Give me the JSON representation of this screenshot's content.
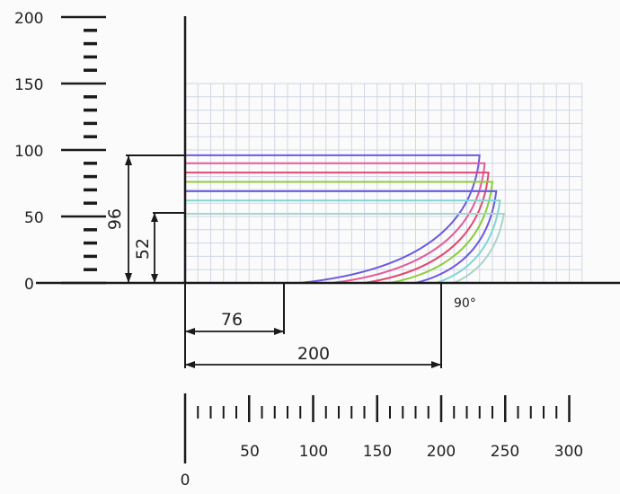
{
  "colors": {
    "background": "#fbfbfb",
    "grid": "#cfd6e6",
    "axis": "#1a1a1a",
    "curves": [
      "#6a5ae0",
      "#e05d9a",
      "#e04a72",
      "#8ccc3c",
      "#6a5ae0",
      "#7fd6d6",
      "#aad4c8"
    ]
  },
  "vertical_scale": {
    "labels": [
      "200",
      "150",
      "100",
      "50",
      "0"
    ],
    "values": [
      200,
      150,
      100,
      50,
      0
    ]
  },
  "horizontal_scale": {
    "labels": [
      "50",
      "100",
      "150",
      "200",
      "250",
      "300"
    ],
    "values": [
      50,
      100,
      150,
      200,
      250,
      300
    ],
    "origin_label": "0"
  },
  "dimensions": {
    "height_outer": "96",
    "height_inner": "52",
    "width_inner": "76",
    "width_outer": "200",
    "angle": "90°"
  },
  "chart_data": {
    "type": "line",
    "xlim": [
      0,
      310
    ],
    "ylim": [
      0,
      200
    ],
    "grid_x_range": [
      0,
      310
    ],
    "grid_y_range": [
      0,
      150
    ],
    "grid": true,
    "series": [
      {
        "color": "#6a5ae0",
        "straight_y": 96,
        "straight_end_x": 230,
        "curve_end_x": 90
      },
      {
        "color": "#e05d9a",
        "straight_y": 90,
        "straight_end_x": 234,
        "curve_end_x": 115
      },
      {
        "color": "#e04a72",
        "straight_y": 83,
        "straight_end_x": 237,
        "curve_end_x": 140
      },
      {
        "color": "#8ccc3c",
        "straight_y": 76,
        "straight_end_x": 240,
        "curve_end_x": 160
      },
      {
        "color": "#6a5ae0",
        "straight_y": 69,
        "straight_end_x": 243,
        "curve_end_x": 180
      },
      {
        "color": "#7fd6d6",
        "straight_y": 62,
        "straight_end_x": 246,
        "curve_end_x": 196
      },
      {
        "color": "#aad4c8",
        "straight_y": 52,
        "straight_end_x": 249,
        "curve_end_x": 210
      }
    ]
  }
}
